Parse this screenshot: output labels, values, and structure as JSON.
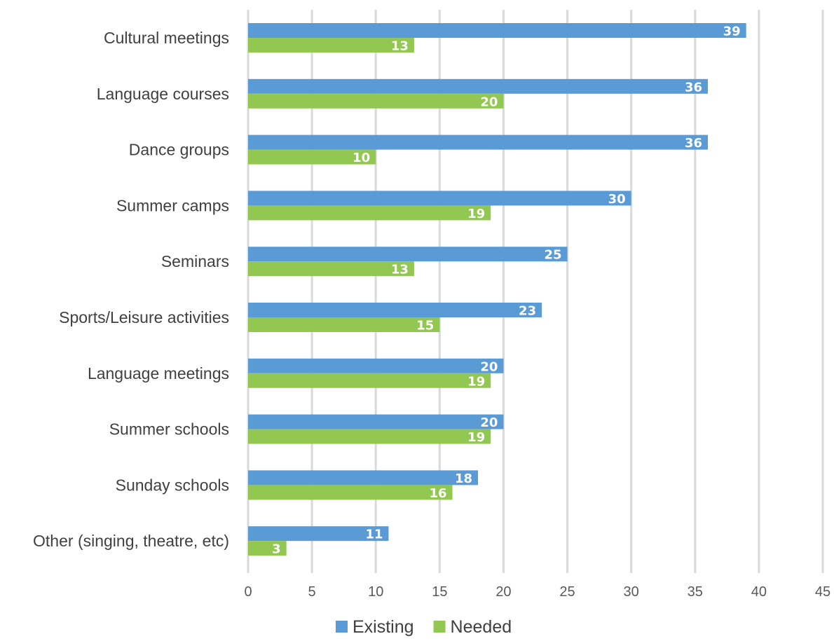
{
  "chart_data": {
    "type": "bar",
    "orientation": "horizontal",
    "categories": [
      "Cultural meetings",
      "Language courses",
      "Dance groups",
      "Summer camps",
      "Seminars",
      "Sports/Leisure activities",
      "Language meetings",
      "Summer schools",
      "Sunday schools",
      "Other (singing, theatre, etc)"
    ],
    "series": [
      {
        "name": "Existing",
        "color": "#5b9bd5",
        "values": [
          39,
          36,
          36,
          30,
          25,
          23,
          20,
          20,
          18,
          11
        ]
      },
      {
        "name": "Needed",
        "color": "#92c851",
        "values": [
          13,
          20,
          10,
          19,
          13,
          15,
          19,
          19,
          16,
          3
        ]
      }
    ],
    "xlim": [
      0,
      45
    ],
    "xticks": [
      "0",
      "5",
      "10",
      "15",
      "20",
      "25",
      "30",
      "35",
      "40",
      "45"
    ],
    "grid": "vertical",
    "legend": "bottom",
    "data_labels": true,
    "title": "",
    "xlabel": "",
    "ylabel": ""
  }
}
